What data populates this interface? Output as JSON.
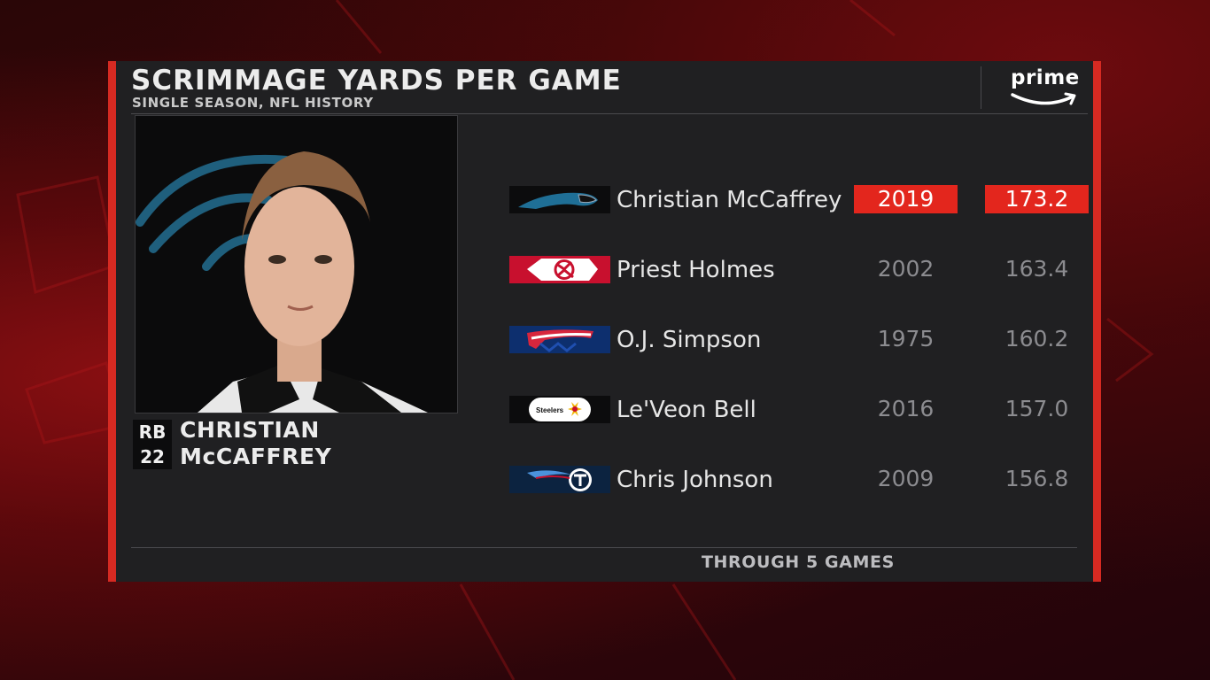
{
  "graphic": {
    "title": "SCRIMMAGE YARDS PER GAME",
    "subtitle": "SINGLE SEASON, NFL HISTORY",
    "footnote": "THROUGH 5 GAMES",
    "broadcaster": "prime",
    "accent_color": "#d62a22",
    "highlight_color": "#e3261d"
  },
  "featured_player": {
    "position": "RB",
    "number": "22",
    "first_name": "CHRISTIAN",
    "last_name": "McCAFFREY",
    "team_icon": "panther-icon"
  },
  "leaders": [
    {
      "player": "Christian McCaffrey",
      "year": "2019",
      "ypg": "173.2",
      "team_icon": "panthers-logo-icon",
      "highlighted": true
    },
    {
      "player": "Priest Holmes",
      "year": "2002",
      "ypg": "163.4",
      "team_icon": "chiefs-logo-icon",
      "highlighted": false
    },
    {
      "player": "O.J. Simpson",
      "year": "1975",
      "ypg": "160.2",
      "team_icon": "bills-logo-icon",
      "highlighted": false
    },
    {
      "player": "Le'Veon Bell",
      "year": "2016",
      "ypg": "157.0",
      "team_icon": "steelers-logo-icon",
      "team_logo_text": "Steelers",
      "highlighted": false
    },
    {
      "player": "Chris Johnson",
      "year": "2009",
      "ypg": "156.8",
      "team_icon": "titans-logo-icon",
      "highlighted": false
    }
  ]
}
